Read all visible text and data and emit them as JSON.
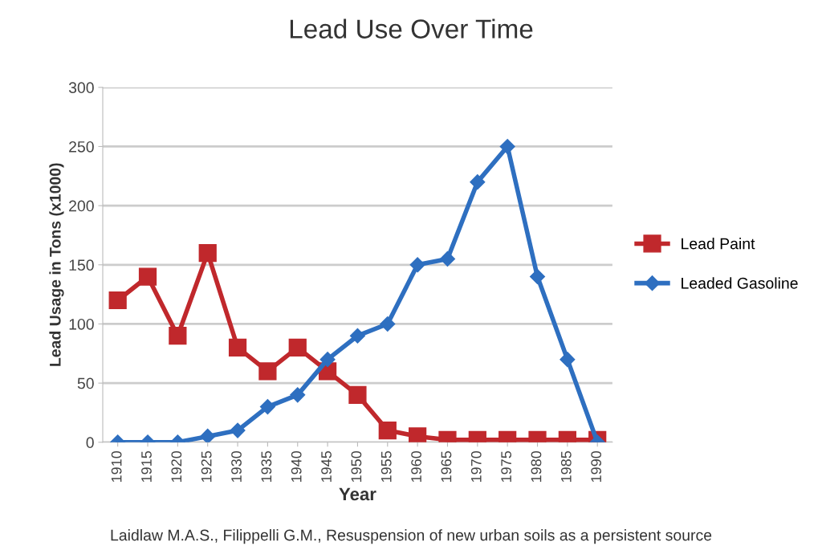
{
  "chart_data": {
    "type": "line",
    "title": "Lead Use Over Time",
    "xlabel": "Year",
    "ylabel": "Lead Usage in Tons (x1000)",
    "categories": [
      "1910",
      "1915",
      "1920",
      "1925",
      "1930",
      "1935",
      "1940",
      "1945",
      "1950",
      "1955",
      "1960",
      "1965",
      "1970",
      "1975",
      "1980",
      "1985",
      "1990"
    ],
    "series": [
      {
        "name": "Lead Paint",
        "color": "#c0282c",
        "marker": "square",
        "values": [
          120,
          140,
          90,
          160,
          80,
          60,
          80,
          60,
          40,
          10,
          5,
          2,
          2,
          2,
          2,
          2,
          2
        ]
      },
      {
        "name": "Leaded Gasoline",
        "color": "#2e6fc0",
        "marker": "diamond",
        "values": [
          0,
          0,
          0,
          5,
          10,
          30,
          40,
          70,
          90,
          100,
          150,
          155,
          220,
          250,
          140,
          70,
          0
        ]
      }
    ],
    "ylim": [
      0,
      300
    ],
    "yticks": [
      0,
      50,
      100,
      150,
      200,
      250,
      300
    ],
    "grid": "y",
    "legend": "right",
    "annotations": [
      "Laidlaw M.A.S., Filippelli G.M., Resuspension of new urban soils as a persistent source"
    ]
  }
}
